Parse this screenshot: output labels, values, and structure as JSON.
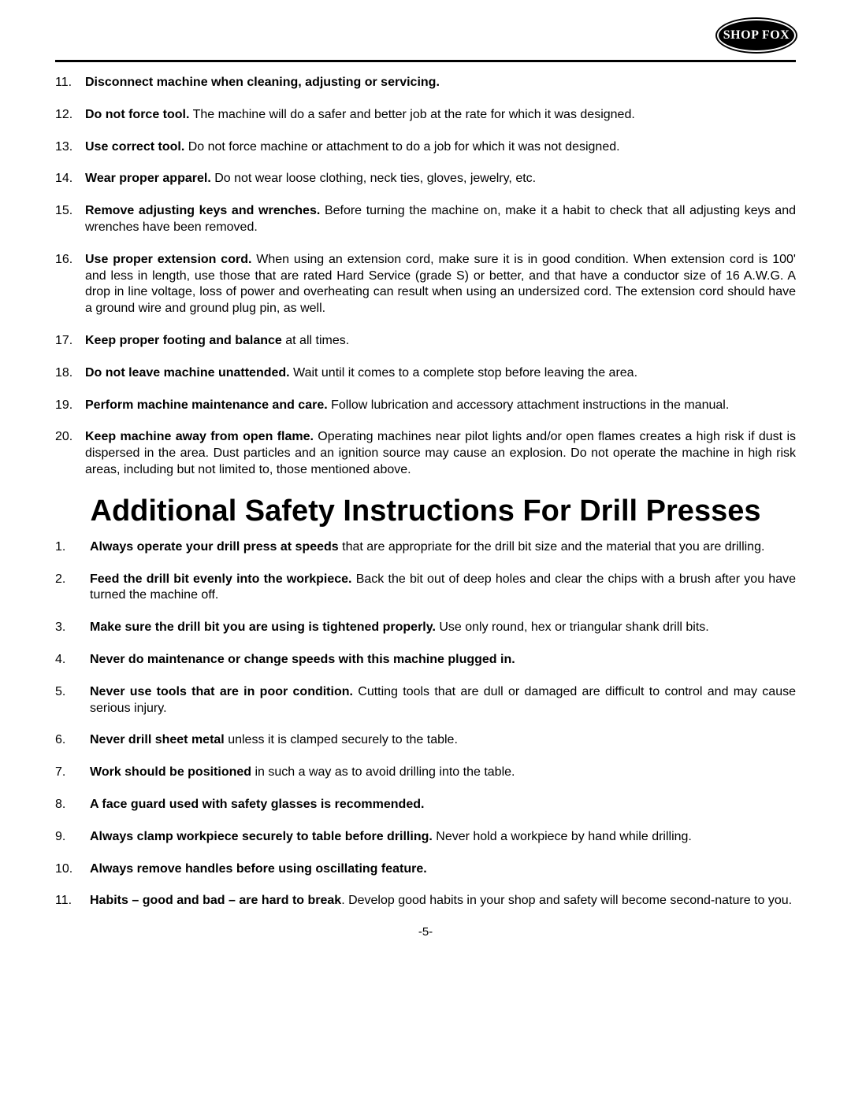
{
  "brand": "SHOP FOX",
  "general_rules_start": 11,
  "general_rules": [
    {
      "bold": "Disconnect machine when cleaning, adjusting or servicing.",
      "rest": ""
    },
    {
      "bold": "Do not force tool.",
      "rest": " The machine will do a safer and better job at the rate for which it was designed."
    },
    {
      "bold": "Use correct tool.",
      "rest": " Do not force machine or attachment to do a job for which it was not designed."
    },
    {
      "bold": "Wear proper apparel.",
      "rest": " Do not wear loose clothing, neck ties, gloves, jewelry, etc."
    },
    {
      "bold": "Remove adjusting keys and wrenches.",
      "rest": " Before turning the machine on, make it a habit to check that all adjusting keys and wrenches have been removed."
    },
    {
      "bold": "Use proper extension cord.",
      "rest": " When using an extension cord, make sure it is in good condition. When extension cord is 100' and less in length, use those that are rated Hard Service (grade S) or better, and that have a conductor size of 16 A.W.G. A drop in line voltage, loss of power and overheating can result when using an undersized cord. The extension cord should have a ground wire and ground plug pin, as well."
    },
    {
      "bold": "Keep proper footing and balance",
      "rest": " at all times."
    },
    {
      "bold": "Do not leave machine unattended.",
      "rest": " Wait until it comes to a complete stop before leaving the area."
    },
    {
      "bold": "Perform machine maintenance and care.",
      "rest": " Follow lubrication and accessory attachment instructions in the manual."
    },
    {
      "bold": "Keep machine away from open flame.",
      "rest": " Operating machines near pilot lights and/or open flames creates a high risk if dust is dispersed in the area. Dust particles and an ignition source may cause an explosion. Do not operate the machine in high risk areas, including but not limited to, those mentioned above."
    }
  ],
  "section_title": "Additional Safety Instructions For Drill Presses",
  "drill_rules": [
    {
      "bold": "Always operate your drill press at speeds",
      "rest": " that are appropriate for the drill bit size and the material that you are drilling."
    },
    {
      "bold": "Feed the drill bit evenly into the workpiece.",
      "rest": "  Back the bit out of deep holes and clear the chips with a brush after you have turned the machine off."
    },
    {
      "bold": "Make sure the drill bit you are using is tightened properly.",
      "rest": "  Use only round, hex or triangular shank drill bits."
    },
    {
      "bold": "Never do maintenance or change speeds with this machine plugged in.",
      "rest": ""
    },
    {
      "bold": "Never use tools that are in poor condition.",
      "rest": "  Cutting tools that are dull or damaged are difficult to control and may cause serious injury."
    },
    {
      "bold": "Never drill sheet metal",
      "rest": " unless it is clamped securely to the table."
    },
    {
      "bold": "Work should be positioned",
      "rest": " in such a way as to avoid drilling into the table."
    },
    {
      "bold": "A face guard used with safety glasses is recommended.",
      "rest": ""
    },
    {
      "bold": "Always clamp workpiece securely to table before drilling.",
      "rest": "  Never hold a workpiece by hand while drilling."
    },
    {
      "bold": "Always remove handles before using oscillating feature.",
      "rest": ""
    },
    {
      "bold": "Habits – good and bad – are hard to break",
      "rest": ".  Develop good habits in your shop and safety will become second-nature to you."
    }
  ],
  "page_number": "-5-"
}
